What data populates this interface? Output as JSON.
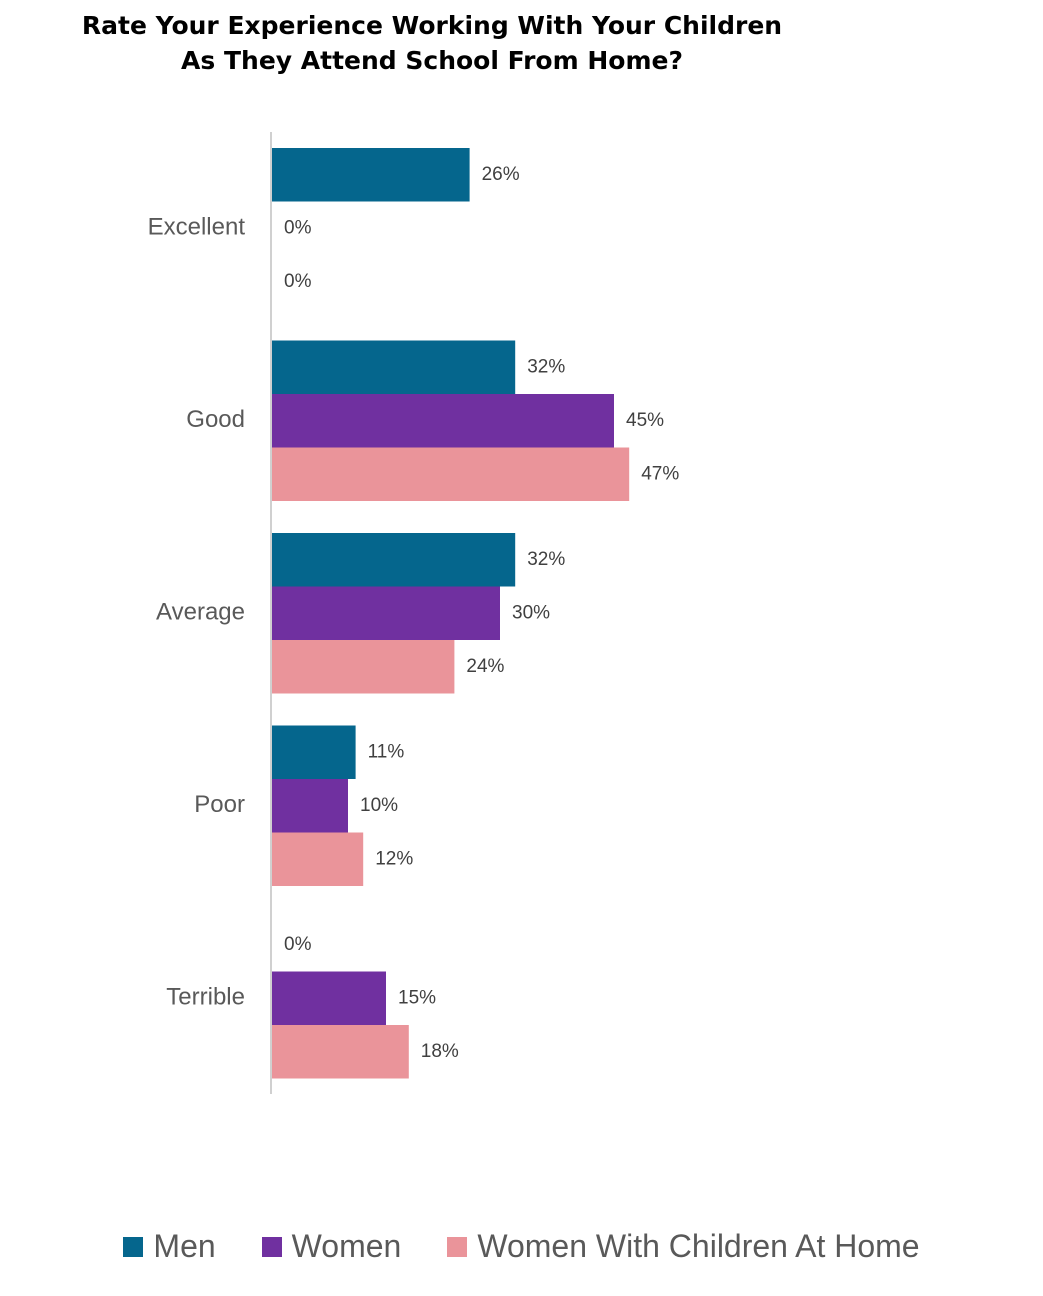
{
  "chart_data": {
    "type": "bar",
    "orientation": "horizontal",
    "title_lines": [
      "Rate Your Experience Working With Your Children",
      "As They Attend School From Home?"
    ],
    "categories": [
      "Excellent",
      "Good",
      "Average",
      "Poor",
      "Terrible"
    ],
    "series": [
      {
        "name": "Men",
        "color": "#05668d",
        "values": [
          26,
          32,
          32,
          11,
          0
        ]
      },
      {
        "name": "Women",
        "color": "#7030a0",
        "values": [
          0,
          45,
          30,
          10,
          15
        ]
      },
      {
        "name": "Women With Children At Home",
        "color": "#ea949a",
        "values": [
          0,
          47,
          24,
          12,
          18
        ]
      }
    ],
    "value_suffix": "%",
    "xlim": [
      0,
      100
    ],
    "grid": false,
    "legend_position": "bottom"
  }
}
